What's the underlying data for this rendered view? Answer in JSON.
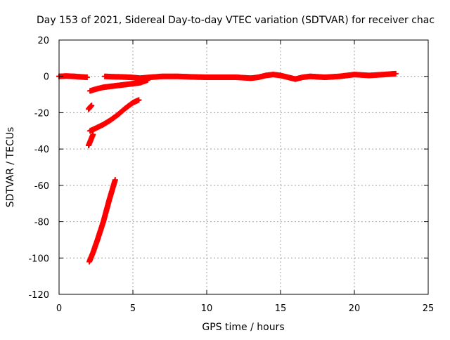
{
  "chart_data": {
    "type": "scatter",
    "title": "Day 153 of 2021, Sidereal Day-to-day VTEC variation (SDTVAR) for receiver chac",
    "xlabel": "GPS time / hours",
    "ylabel": "SDTVAR / TECUs",
    "xlim": [
      0,
      25
    ],
    "ylim": [
      -120,
      20
    ],
    "xticks": [
      0,
      5,
      10,
      15,
      20,
      25
    ],
    "yticks": [
      -120,
      -100,
      -80,
      -60,
      -40,
      -20,
      0,
      20
    ],
    "grid": true,
    "legend": "none",
    "marker": "+",
    "series": [
      {
        "color": "#ff0000",
        "segments": [
          {
            "x": [
              0.0,
              0.5,
              1.0,
              1.5,
              1.9
            ],
            "y": [
              0.0,
              0.2,
              0.0,
              -0.3,
              -0.5
            ]
          },
          {
            "x": [
              3.1,
              3.6,
              4.2,
              4.8,
              5.5,
              6.2,
              7.0,
              8.0,
              9.0,
              10.0,
              11.0,
              12.0,
              13.0,
              13.5,
              14.0,
              14.5,
              15.0,
              15.5,
              16.0,
              16.5,
              17.0,
              18.0,
              19.0,
              20.0,
              21.0,
              22.0,
              22.8
            ],
            "y": [
              0.0,
              -0.2,
              -0.3,
              -0.5,
              -1.0,
              -0.5,
              0.0,
              0.0,
              -0.3,
              -0.5,
              -0.5,
              -0.5,
              -1.0,
              -0.5,
              0.5,
              1.0,
              0.5,
              -0.5,
              -1.5,
              -0.5,
              0.0,
              -0.5,
              0.0,
              1.0,
              0.5,
              1.0,
              1.5
            ]
          },
          {
            "x": [
              2.1,
              2.5,
              3.0,
              3.5,
              4.0,
              4.5,
              5.0,
              5.5,
              6.0
            ],
            "y": [
              -8.0,
              -7.0,
              -6.0,
              -5.5,
              -5.0,
              -4.5,
              -4.0,
              -3.5,
              -2.0
            ]
          },
          {
            "x": [
              2.0,
              2.1,
              2.2
            ],
            "y": [
              -18.0,
              -17.0,
              -16.0
            ]
          },
          {
            "x": [
              2.1,
              2.5,
              3.0,
              3.5,
              4.0,
              4.5,
              5.0,
              5.4
            ],
            "y": [
              -30.0,
              -28.5,
              -26.5,
              -24.0,
              -21.0,
              -17.5,
              -14.5,
              -13.0
            ]
          },
          {
            "x": [
              2.0,
              2.1,
              2.2,
              2.3
            ],
            "y": [
              -38.0,
              -36.0,
              -34.0,
              -32.0
            ]
          },
          {
            "x": [
              2.05,
              2.3,
              2.6,
              3.0,
              3.4,
              3.8
            ],
            "y": [
              -102.0,
              -97.0,
              -90.0,
              -80.0,
              -68.0,
              -57.0
            ]
          }
        ]
      }
    ]
  }
}
